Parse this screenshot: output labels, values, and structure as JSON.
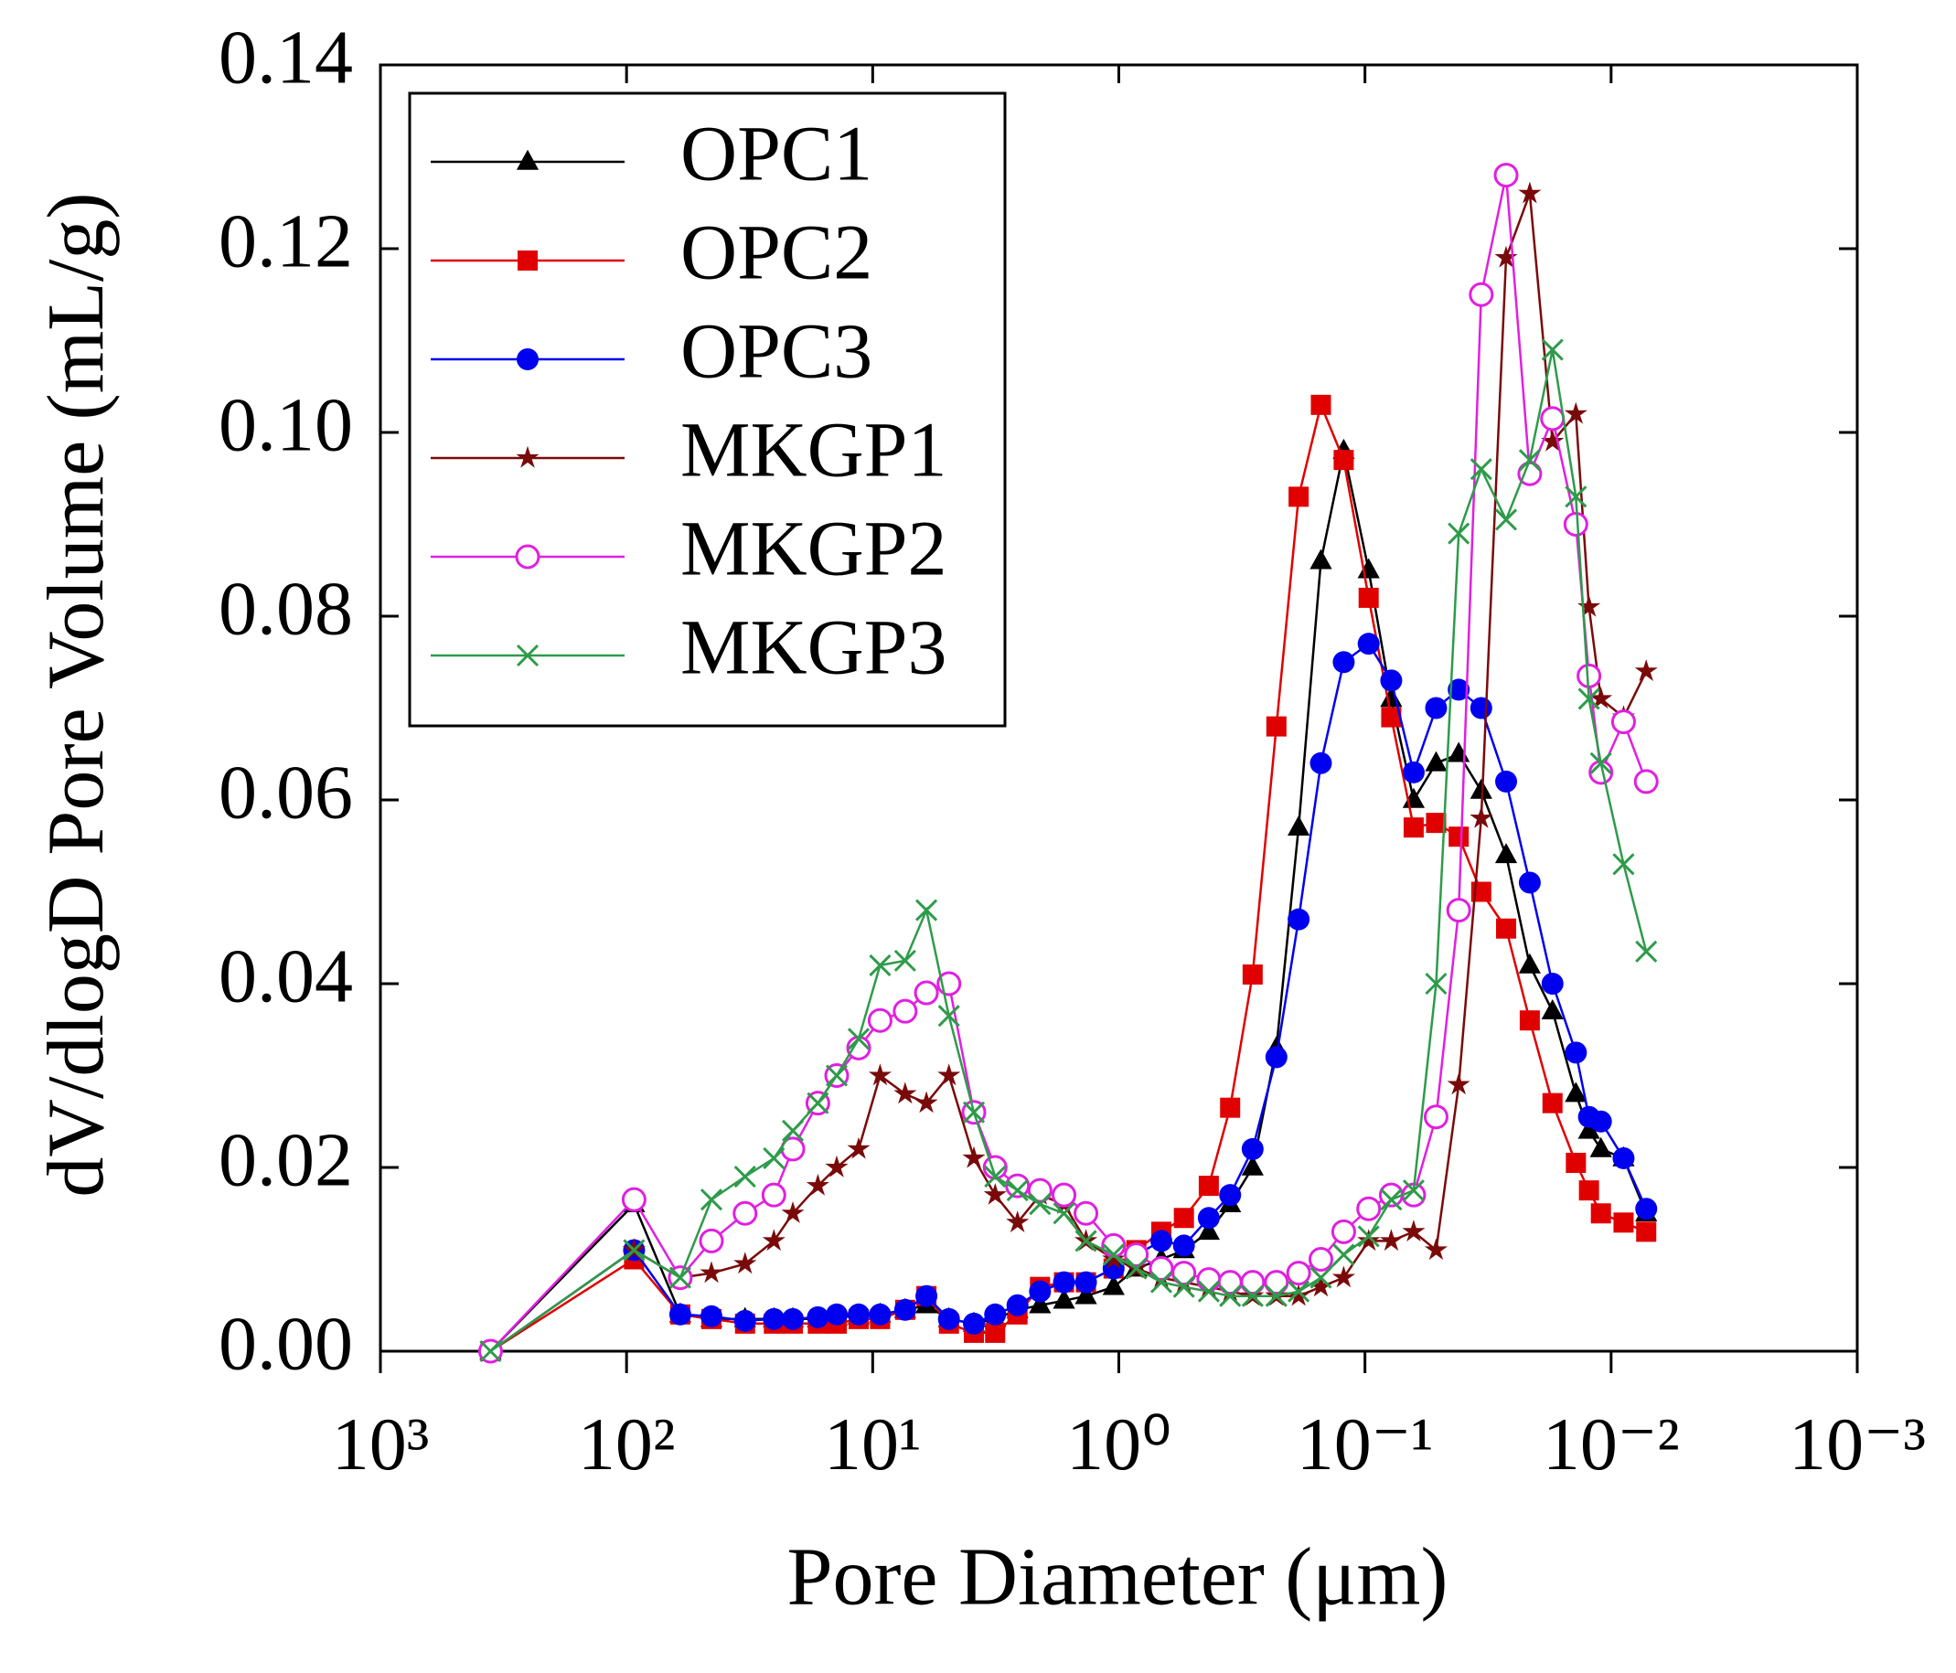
{
  "chart_data": {
    "type": "line",
    "x_label": "Pore Diameter  (μm)",
    "y_label": "dV/dlogD Pore Volume  (mL/g)",
    "xscale": "log",
    "xlim": [
      1000,
      0.001
    ],
    "xticks": [
      {
        "value": 1000,
        "label": "10³"
      },
      {
        "value": 100,
        "label": "10²"
      },
      {
        "value": 10,
        "label": "10¹"
      },
      {
        "value": 1,
        "label": "10⁰"
      },
      {
        "value": 0.1,
        "label": "10⁻¹"
      },
      {
        "value": 0.01,
        "label": "10⁻²"
      },
      {
        "value": 0.001,
        "label": "10⁻³"
      }
    ],
    "ylim": [
      0,
      0.14
    ],
    "yticks": [
      {
        "value": 0,
        "label": "0.00"
      },
      0.02,
      0.04,
      0.06,
      0.08,
      {
        "value": 0.1,
        "label": "0.10"
      },
      0.12,
      0.14
    ],
    "legend": "upper left",
    "x": [
      357,
      93.2,
      60.5,
      45.2,
      33.0,
      25.2,
      21.1,
      16.7,
      14.0,
      11.4,
      9.33,
      7.38,
      6.05,
      4.9,
      3.88,
      3.18,
      2.58,
      2.09,
      1.67,
      1.36,
      1.05,
      0.849,
      0.672,
      0.544,
      0.431,
      0.353,
      0.286,
      0.229,
      0.186,
      0.151,
      0.122,
      0.0966,
      0.0782,
      0.0634,
      0.0514,
      0.0416,
      0.0337,
      0.0267,
      0.0214,
      0.0173,
      0.0139,
      0.0123,
      0.011,
      0.0089,
      0.0072
    ],
    "series": [
      {
        "name": "OPC1",
        "color": "#000000",
        "marker": "triangle",
        "values": [
          0,
          0.016,
          0.004,
          0.0035,
          0.0035,
          0.0035,
          0.0035,
          0.0035,
          0.0037,
          0.0038,
          0.004,
          0.0045,
          0.005,
          0.0035,
          0.003,
          0.0035,
          0.0045,
          0.005,
          0.0055,
          0.006,
          0.007,
          0.009,
          0.01,
          0.011,
          0.013,
          0.016,
          0.02,
          0.033,
          0.057,
          0.086,
          0.098,
          0.085,
          0.071,
          0.06,
          0.064,
          0.065,
          0.061,
          0.054,
          0.042,
          0.037,
          0.028,
          0.024,
          0.022,
          0.021,
          0.015
        ]
      },
      {
        "name": "OPC2",
        "color": "#e00000",
        "marker": "square",
        "values": [
          0,
          0.01,
          0.004,
          0.0035,
          0.003,
          0.003,
          0.003,
          0.003,
          0.003,
          0.0035,
          0.0035,
          0.0045,
          0.006,
          0.003,
          0.002,
          0.002,
          0.004,
          0.007,
          0.0075,
          0.0075,
          0.009,
          0.011,
          0.013,
          0.0145,
          0.018,
          0.0265,
          0.041,
          0.068,
          0.093,
          0.103,
          0.097,
          0.082,
          0.069,
          0.057,
          0.0575,
          0.056,
          0.05,
          0.046,
          0.036,
          0.027,
          0.0205,
          0.0175,
          0.015,
          0.014,
          0.013
        ]
      },
      {
        "name": "OPC3",
        "color": "#0000f0",
        "marker": "circle",
        "values": [
          0,
          0.011,
          0.004,
          0.0038,
          0.0033,
          0.0035,
          0.0035,
          0.0037,
          0.004,
          0.004,
          0.004,
          0.0045,
          0.006,
          0.0035,
          0.003,
          0.004,
          0.005,
          0.0065,
          0.0075,
          0.0075,
          0.009,
          0.0105,
          0.012,
          0.0115,
          0.0145,
          0.017,
          0.022,
          0.032,
          0.047,
          0.064,
          0.075,
          0.077,
          0.073,
          0.063,
          0.07,
          0.072,
          0.07,
          0.062,
          0.051,
          0.04,
          0.0325,
          0.0255,
          0.025,
          0.021,
          0.0155
        ]
      },
      {
        "name": "MKGP1",
        "color": "#7a0a0a",
        "marker": "star",
        "values": [
          0,
          0.011,
          0.008,
          0.0085,
          0.0095,
          0.012,
          0.015,
          0.018,
          0.02,
          0.022,
          0.03,
          0.028,
          0.027,
          0.03,
          0.021,
          0.017,
          0.014,
          0.017,
          0.016,
          0.012,
          0.01,
          0.009,
          0.008,
          0.0075,
          0.007,
          0.0065,
          0.006,
          0.006,
          0.006,
          0.007,
          0.008,
          0.012,
          0.012,
          0.013,
          0.011,
          0.029,
          0.058,
          0.119,
          0.126,
          0.099,
          0.102,
          0.081,
          0.071,
          0.069,
          0.074
        ]
      },
      {
        "name": "MKGP2",
        "color": "#e020e0",
        "marker": "open-circle",
        "values": [
          0,
          0.0165,
          0.008,
          0.012,
          0.015,
          0.017,
          0.022,
          0.027,
          0.03,
          0.033,
          0.036,
          0.037,
          0.039,
          0.04,
          0.026,
          0.02,
          0.018,
          0.0175,
          0.017,
          0.015,
          0.0115,
          0.0105,
          0.009,
          0.0085,
          0.0078,
          0.0075,
          0.0075,
          0.0075,
          0.0085,
          0.01,
          0.013,
          0.0155,
          0.017,
          0.017,
          0.0255,
          0.048,
          0.115,
          0.128,
          0.0955,
          0.1015,
          0.09,
          0.0735,
          0.063,
          0.0685,
          0.062
        ]
      },
      {
        "name": "MKGP3",
        "color": "#2e9b4a",
        "marker": "x",
        "values": [
          0,
          0.011,
          0.008,
          0.0165,
          0.019,
          0.021,
          0.024,
          0.027,
          0.03,
          0.034,
          0.042,
          0.0425,
          0.048,
          0.0365,
          0.026,
          0.019,
          0.0175,
          0.016,
          0.015,
          0.012,
          0.0105,
          0.009,
          0.0075,
          0.007,
          0.0065,
          0.006,
          0.006,
          0.006,
          0.0065,
          0.008,
          0.0105,
          0.0125,
          0.0165,
          0.0175,
          0.04,
          0.089,
          0.096,
          0.0905,
          0.097,
          0.109,
          0.093,
          0.071,
          0.064,
          0.053,
          0.0435
        ]
      }
    ]
  }
}
